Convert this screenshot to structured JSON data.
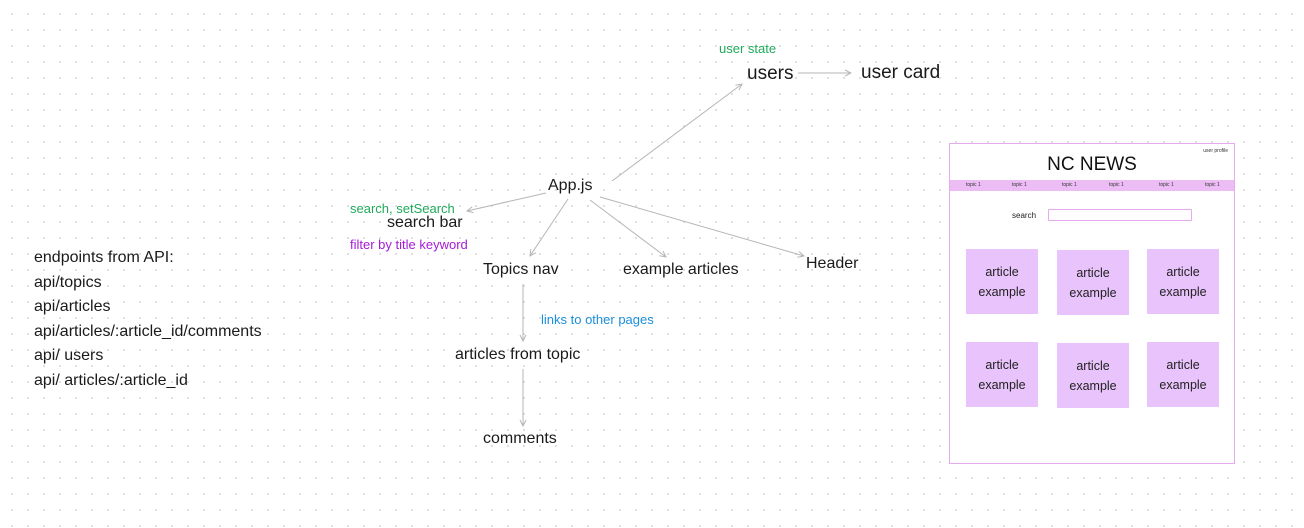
{
  "diagram": {
    "nodes": {
      "users": "users",
      "user_card": "user card",
      "app": "App.js",
      "search_bar": "search bar",
      "topics_nav": "Topics nav",
      "example_articles": "example articles",
      "header": "Header",
      "articles_from_topic": "articles from topic",
      "comments": "comments"
    },
    "notes": {
      "user_state": "user state",
      "search_state": "search, setSearch",
      "filter": "filter by title keyword",
      "links": "links to other pages"
    },
    "colors": {
      "green_note": "#1faa5a",
      "purple_note": "#a61bd8",
      "blue_note": "#1c8fdc",
      "arrow": "#b5b5b5"
    }
  },
  "endpoints": {
    "heading": "endpoints from API:",
    "items": [
      "api/topics",
      "api/articles",
      "api/articles/:article_id/comments",
      "api/ users",
      "api/ articles/:article_id"
    ]
  },
  "wireframe": {
    "profile": "user profile",
    "title": "NC NEWS",
    "topics": [
      "topic 1",
      "topic 1",
      "topic 1",
      "topic 1",
      "topic 1",
      "topic 1"
    ],
    "search_label": "search",
    "articles": [
      "article example",
      "article example",
      "article example",
      "article example",
      "article example",
      "article example"
    ],
    "colors": {
      "border": "#e7a9f0",
      "topic_bar": "#ebbdf4",
      "card": "#e9c3fb"
    }
  }
}
